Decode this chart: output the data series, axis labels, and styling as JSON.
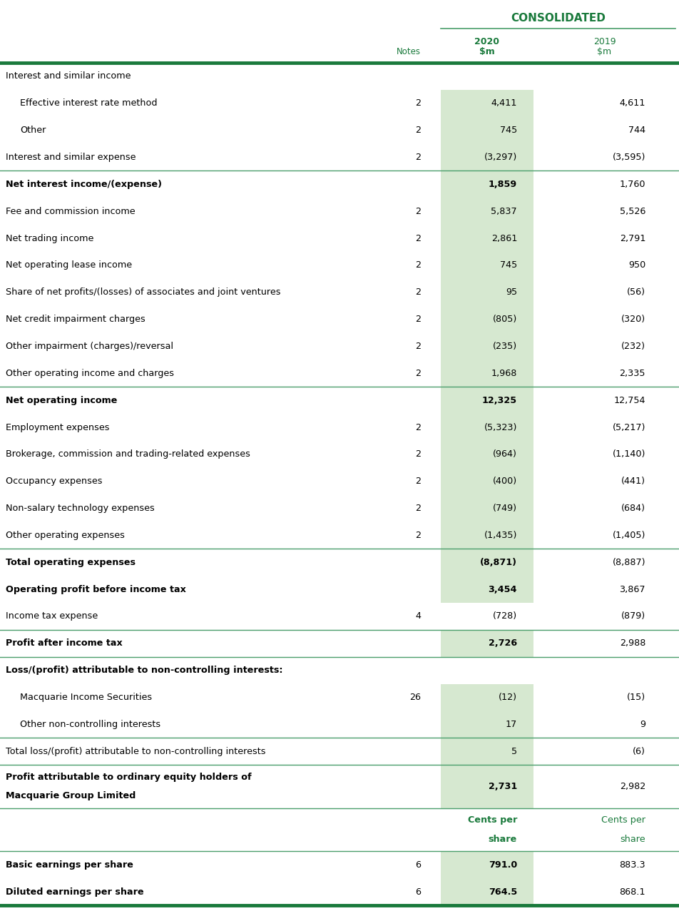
{
  "green_dark": "#1a7a3c",
  "green_light_bg": "#d6e8d0",
  "green_line": "#4a9e6b",
  "rows": [
    {
      "label": "Interest and similar income",
      "indent": 0,
      "notes": "",
      "val2020": "",
      "val2019": "",
      "bold": false,
      "highlight": false,
      "bottom_border": false,
      "multiline_label": false
    },
    {
      "label": "Effective interest rate method",
      "indent": 1,
      "notes": "2",
      "val2020": "4,411",
      "val2019": "4,611",
      "bold": false,
      "highlight": true,
      "bottom_border": false,
      "multiline_label": false
    },
    {
      "label": "Other",
      "indent": 1,
      "notes": "2",
      "val2020": "745",
      "val2019": "744",
      "bold": false,
      "highlight": true,
      "bottom_border": false,
      "multiline_label": false
    },
    {
      "label": "Interest and similar expense",
      "indent": 0,
      "notes": "2",
      "val2020": "(3,297)",
      "val2019": "(3,595)",
      "bold": false,
      "highlight": true,
      "bottom_border": true,
      "multiline_label": false
    },
    {
      "label": "Net interest income/(expense)",
      "indent": 0,
      "notes": "",
      "val2020": "1,859",
      "val2019": "1,760",
      "bold": true,
      "highlight": true,
      "bottom_border": false,
      "multiline_label": false
    },
    {
      "label": "Fee and commission income",
      "indent": 0,
      "notes": "2",
      "val2020": "5,837",
      "val2019": "5,526",
      "bold": false,
      "highlight": true,
      "bottom_border": false,
      "multiline_label": false
    },
    {
      "label": "Net trading income",
      "indent": 0,
      "notes": "2",
      "val2020": "2,861",
      "val2019": "2,791",
      "bold": false,
      "highlight": true,
      "bottom_border": false,
      "multiline_label": false
    },
    {
      "label": "Net operating lease income",
      "indent": 0,
      "notes": "2",
      "val2020": "745",
      "val2019": "950",
      "bold": false,
      "highlight": true,
      "bottom_border": false,
      "multiline_label": false
    },
    {
      "label": "Share of net profits/(losses) of associates and joint ventures",
      "indent": 0,
      "notes": "2",
      "val2020": "95",
      "val2019": "(56)",
      "bold": false,
      "highlight": true,
      "bottom_border": false,
      "multiline_label": false
    },
    {
      "label": "Net credit impairment charges",
      "indent": 0,
      "notes": "2",
      "val2020": "(805)",
      "val2019": "(320)",
      "bold": false,
      "highlight": true,
      "bottom_border": false,
      "multiline_label": false
    },
    {
      "label": "Other impairment (charges)/reversal",
      "indent": 0,
      "notes": "2",
      "val2020": "(235)",
      "val2019": "(232)",
      "bold": false,
      "highlight": true,
      "bottom_border": false,
      "multiline_label": false
    },
    {
      "label": "Other operating income and charges",
      "indent": 0,
      "notes": "2",
      "val2020": "1,968",
      "val2019": "2,335",
      "bold": false,
      "highlight": true,
      "bottom_border": true,
      "multiline_label": false
    },
    {
      "label": "Net operating income",
      "indent": 0,
      "notes": "",
      "val2020": "12,325",
      "val2019": "12,754",
      "bold": true,
      "highlight": true,
      "bottom_border": false,
      "multiline_label": false
    },
    {
      "label": "Employment expenses",
      "indent": 0,
      "notes": "2",
      "val2020": "(5,323)",
      "val2019": "(5,217)",
      "bold": false,
      "highlight": true,
      "bottom_border": false,
      "multiline_label": false
    },
    {
      "label": "Brokerage, commission and trading-related expenses",
      "indent": 0,
      "notes": "2",
      "val2020": "(964)",
      "val2019": "(1,140)",
      "bold": false,
      "highlight": true,
      "bottom_border": false,
      "multiline_label": false
    },
    {
      "label": "Occupancy expenses",
      "indent": 0,
      "notes": "2",
      "val2020": "(400)",
      "val2019": "(441)",
      "bold": false,
      "highlight": true,
      "bottom_border": false,
      "multiline_label": false
    },
    {
      "label": "Non-salary technology expenses",
      "indent": 0,
      "notes": "2",
      "val2020": "(749)",
      "val2019": "(684)",
      "bold": false,
      "highlight": true,
      "bottom_border": false,
      "multiline_label": false
    },
    {
      "label": "Other operating expenses",
      "indent": 0,
      "notes": "2",
      "val2020": "(1,435)",
      "val2019": "(1,405)",
      "bold": false,
      "highlight": true,
      "bottom_border": true,
      "multiline_label": false
    },
    {
      "label": "Total operating expenses",
      "indent": 0,
      "notes": "",
      "val2020": "(8,871)",
      "val2019": "(8,887)",
      "bold": true,
      "highlight": true,
      "bottom_border": false,
      "multiline_label": false
    },
    {
      "label": "Operating profit before income tax",
      "indent": 0,
      "notes": "",
      "val2020": "3,454",
      "val2019": "3,867",
      "bold": true,
      "highlight": true,
      "bottom_border": false,
      "multiline_label": false
    },
    {
      "label": "Income tax expense",
      "indent": 0,
      "notes": "4",
      "val2020": "(728)",
      "val2019": "(879)",
      "bold": false,
      "highlight": false,
      "bottom_border": true,
      "multiline_label": false
    },
    {
      "label": "Profit after income tax",
      "indent": 0,
      "notes": "",
      "val2020": "2,726",
      "val2019": "2,988",
      "bold": true,
      "highlight": true,
      "bottom_border": true,
      "multiline_label": false
    },
    {
      "label": "Loss/(profit) attributable to non-controlling interests:",
      "indent": 0,
      "notes": "",
      "val2020": "",
      "val2019": "",
      "bold": true,
      "highlight": false,
      "bottom_border": false,
      "multiline_label": false
    },
    {
      "label": "Macquarie Income Securities",
      "indent": 1,
      "notes": "26",
      "val2020": "(12)",
      "val2019": "(15)",
      "bold": false,
      "highlight": true,
      "bottom_border": false,
      "multiline_label": false
    },
    {
      "label": "Other non-controlling interests",
      "indent": 1,
      "notes": "",
      "val2020": "17",
      "val2019": "9",
      "bold": false,
      "highlight": true,
      "bottom_border": true,
      "multiline_label": false
    },
    {
      "label": "Total loss/(profit) attributable to non-controlling interests",
      "indent": 0,
      "notes": "",
      "val2020": "5",
      "val2019": "(6)",
      "bold": false,
      "highlight": true,
      "bottom_border": true,
      "multiline_label": false
    },
    {
      "label": "Profit attributable to ordinary equity holders of\nMacquarie Group Limited",
      "indent": 0,
      "notes": "",
      "val2020": "2,731",
      "val2019": "2,982",
      "bold": true,
      "highlight": true,
      "bottom_border": true,
      "multiline_label": true
    },
    {
      "label": "",
      "indent": 0,
      "notes": "",
      "val2020": "Cents per\nshare",
      "val2019": "Cents per\nshare",
      "bold": false,
      "highlight": false,
      "bottom_border": true,
      "multiline_label": false,
      "green_text": true,
      "cents_row": true
    },
    {
      "label": "Basic earnings per share",
      "indent": 0,
      "notes": "6",
      "val2020": "791.0",
      "val2019": "883.3",
      "bold": true,
      "highlight": true,
      "bottom_border": false,
      "multiline_label": false
    },
    {
      "label": "Diluted earnings per share",
      "indent": 0,
      "notes": "6",
      "val2020": "764.5",
      "val2019": "868.1",
      "bold": true,
      "highlight": true,
      "bottom_border": true,
      "multiline_label": false
    }
  ]
}
